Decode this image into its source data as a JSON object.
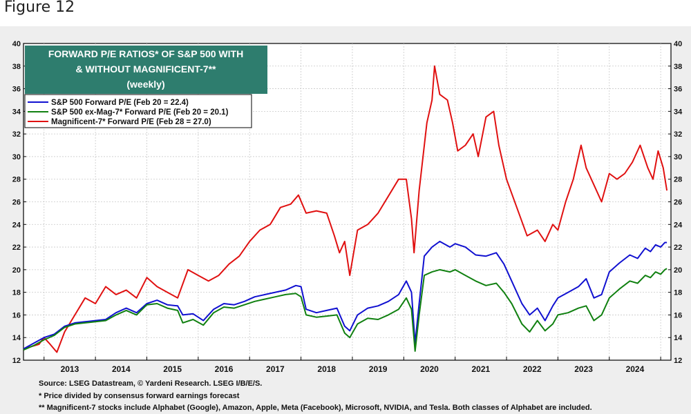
{
  "page": {
    "figure_label": "Figure 12"
  },
  "chart_data": {
    "type": "line",
    "title": "FORWARD P/E RATIOS* OF S&P 500 WITH & WITHOUT MAGNIFICENT-7**",
    "title_lines": [
      "FORWARD P/E RATIOS* OF S&P 500 WITH",
      "& WITHOUT MAGNIFICENT-7**",
      "(weekly)"
    ],
    "ylim": [
      12,
      40
    ],
    "yticks": [
      12,
      14,
      16,
      18,
      20,
      22,
      24,
      26,
      28,
      30,
      32,
      34,
      36,
      38,
      40
    ],
    "xlim": [
      2012.6,
      2025.2
    ],
    "xtick_labels": [
      "2013",
      "2014",
      "2015",
      "2016",
      "2017",
      "2018",
      "2019",
      "2020",
      "2021",
      "2022",
      "2023",
      "2024"
    ],
    "colors": {
      "title_box": "#2e7d6e",
      "sp500": "#1010d0",
      "exmag": "#108010",
      "mag7": "#e01010"
    },
    "legend_position": "top-left",
    "series": [
      {
        "name": "S&P 500 Forward P/E (Feb 20 = 22.4)",
        "color": "#1010d0",
        "x": [
          2012.6,
          2012.8,
          2013.0,
          2013.2,
          2013.4,
          2013.6,
          2013.8,
          2014.0,
          2014.2,
          2014.4,
          2014.6,
          2014.8,
          2015.0,
          2015.2,
          2015.4,
          2015.6,
          2015.7,
          2015.9,
          2016.1,
          2016.3,
          2016.5,
          2016.7,
          2016.9,
          2017.1,
          2017.3,
          2017.5,
          2017.7,
          2017.9,
          2018.0,
          2018.1,
          2018.3,
          2018.5,
          2018.7,
          2018.85,
          2018.95,
          2019.1,
          2019.3,
          2019.5,
          2019.7,
          2019.9,
          2020.05,
          2020.15,
          2020.22,
          2020.3,
          2020.4,
          2020.55,
          2020.7,
          2020.9,
          2021.0,
          2021.2,
          2021.4,
          2021.6,
          2021.8,
          2021.95,
          2022.1,
          2022.3,
          2022.45,
          2022.6,
          2022.75,
          2022.9,
          2023.0,
          2023.2,
          2023.4,
          2023.55,
          2023.7,
          2023.85,
          2024.0,
          2024.2,
          2024.4,
          2024.55,
          2024.7,
          2024.8,
          2024.9,
          2025.0,
          2025.08,
          2025.12
        ],
        "values": [
          13.0,
          13.5,
          14.0,
          14.3,
          15.0,
          15.3,
          15.4,
          15.5,
          15.6,
          16.2,
          16.6,
          16.2,
          17.0,
          17.3,
          16.9,
          16.8,
          16.0,
          16.1,
          15.5,
          16.5,
          17.0,
          16.9,
          17.2,
          17.6,
          17.8,
          18.0,
          18.2,
          18.6,
          18.5,
          16.5,
          16.2,
          16.4,
          16.6,
          15.0,
          14.6,
          16.0,
          16.6,
          16.8,
          17.2,
          17.8,
          19.0,
          18.0,
          13.5,
          17.0,
          21.2,
          22.0,
          22.5,
          22.0,
          22.3,
          22.0,
          21.3,
          21.2,
          21.5,
          20.5,
          19.0,
          17.0,
          16.0,
          16.6,
          15.5,
          16.8,
          17.5,
          18.0,
          18.5,
          19.2,
          17.5,
          17.8,
          19.8,
          20.6,
          21.3,
          21.0,
          21.9,
          21.6,
          22.2,
          22.0,
          22.4,
          22.4
        ]
      },
      {
        "name": "S&P 500 ex-Mag-7* Forward P/E (Feb 20 = 20.1)",
        "color": "#108010",
        "x": [
          2012.6,
          2012.8,
          2013.0,
          2013.2,
          2013.4,
          2013.6,
          2013.8,
          2014.0,
          2014.2,
          2014.4,
          2014.6,
          2014.8,
          2015.0,
          2015.2,
          2015.4,
          2015.6,
          2015.7,
          2015.9,
          2016.1,
          2016.3,
          2016.5,
          2016.7,
          2016.9,
          2017.1,
          2017.3,
          2017.5,
          2017.7,
          2017.9,
          2018.0,
          2018.1,
          2018.3,
          2018.5,
          2018.7,
          2018.85,
          2018.95,
          2019.1,
          2019.3,
          2019.5,
          2019.7,
          2019.9,
          2020.05,
          2020.15,
          2020.22,
          2020.3,
          2020.4,
          2020.55,
          2020.7,
          2020.9,
          2021.0,
          2021.2,
          2021.4,
          2021.6,
          2021.8,
          2021.95,
          2022.1,
          2022.3,
          2022.45,
          2022.6,
          2022.75,
          2022.9,
          2023.0,
          2023.2,
          2023.4,
          2023.55,
          2023.7,
          2023.85,
          2024.0,
          2024.2,
          2024.4,
          2024.55,
          2024.7,
          2024.8,
          2024.9,
          2025.0,
          2025.08,
          2025.12
        ],
        "values": [
          12.9,
          13.3,
          13.8,
          14.2,
          14.9,
          15.2,
          15.3,
          15.4,
          15.5,
          16.0,
          16.4,
          16.0,
          16.9,
          17.0,
          16.6,
          16.4,
          15.3,
          15.6,
          15.1,
          16.2,
          16.7,
          16.6,
          16.9,
          17.2,
          17.4,
          17.6,
          17.8,
          17.9,
          17.6,
          16.0,
          15.8,
          15.9,
          16.0,
          14.4,
          14.0,
          15.2,
          15.7,
          15.6,
          16.0,
          16.5,
          17.5,
          16.5,
          12.8,
          16.0,
          19.5,
          19.8,
          20.0,
          19.8,
          20.0,
          19.5,
          19.0,
          18.6,
          18.8,
          18.0,
          17.0,
          15.2,
          14.5,
          15.5,
          14.6,
          15.2,
          16.0,
          16.2,
          16.6,
          16.8,
          15.5,
          16.0,
          17.5,
          18.3,
          19.0,
          18.8,
          19.5,
          19.3,
          19.8,
          19.6,
          20.0,
          20.1
        ]
      },
      {
        "name": "Magnificent-7* Forward P/E (Feb 28 = 27.0)",
        "color": "#e01010",
        "x": [
          2012.6,
          2012.75,
          2012.9,
          2013.0,
          2013.1,
          2013.25,
          2013.4,
          2013.6,
          2013.8,
          2014.0,
          2014.2,
          2014.4,
          2014.6,
          2014.8,
          2015.0,
          2015.2,
          2015.4,
          2015.6,
          2015.8,
          2016.0,
          2016.2,
          2016.4,
          2016.6,
          2016.8,
          2017.0,
          2017.2,
          2017.4,
          2017.6,
          2017.8,
          2017.95,
          2018.1,
          2018.3,
          2018.5,
          2018.65,
          2018.75,
          2018.85,
          2018.95,
          2019.1,
          2019.3,
          2019.5,
          2019.7,
          2019.9,
          2020.05,
          2020.15,
          2020.2,
          2020.3,
          2020.45,
          2020.55,
          2020.6,
          2020.7,
          2020.85,
          2020.95,
          2021.05,
          2021.2,
          2021.35,
          2021.45,
          2021.6,
          2021.75,
          2021.85,
          2022.0,
          2022.2,
          2022.4,
          2022.6,
          2022.75,
          2022.9,
          2023.0,
          2023.15,
          2023.3,
          2023.45,
          2023.55,
          2023.7,
          2023.85,
          2024.0,
          2024.15,
          2024.3,
          2024.45,
          2024.6,
          2024.75,
          2024.85,
          2024.95,
          2025.05,
          2025.12
        ],
        "values": [
          13.0,
          13.2,
          13.4,
          14.0,
          13.5,
          12.7,
          14.5,
          16.0,
          17.5,
          17.0,
          18.5,
          17.8,
          18.2,
          17.5,
          19.3,
          18.5,
          18.0,
          17.5,
          20.0,
          19.5,
          19.0,
          19.5,
          20.5,
          21.2,
          22.5,
          23.5,
          24.0,
          25.5,
          25.8,
          26.6,
          25.0,
          25.2,
          25.0,
          23.0,
          21.5,
          22.5,
          19.5,
          23.5,
          24.0,
          25.0,
          26.5,
          28.0,
          28.0,
          24.5,
          21.5,
          27.0,
          33.0,
          35.0,
          38.0,
          35.5,
          35.0,
          33.0,
          30.5,
          31.0,
          32.0,
          30.0,
          33.5,
          34.0,
          31.0,
          28.0,
          25.5,
          23.0,
          23.5,
          22.5,
          24.0,
          23.5,
          26.0,
          28.0,
          31.0,
          29.0,
          27.5,
          26.0,
          28.5,
          28.0,
          28.5,
          29.5,
          31.0,
          29.0,
          28.0,
          30.5,
          29.0,
          27.0
        ]
      }
    ]
  },
  "source_notes": [
    "Source: LSEG Datastream, © Yardeni Research. LSEG I/B/E/S.",
    "* Price divided by consensus forward earnings forecast",
    "** Magnificent-7 stocks include Alphabet (Google), Amazon, Apple, Meta (Facebook), Microsoft, NVIDIA, and Tesla. Both classes of Alphabet are included."
  ]
}
